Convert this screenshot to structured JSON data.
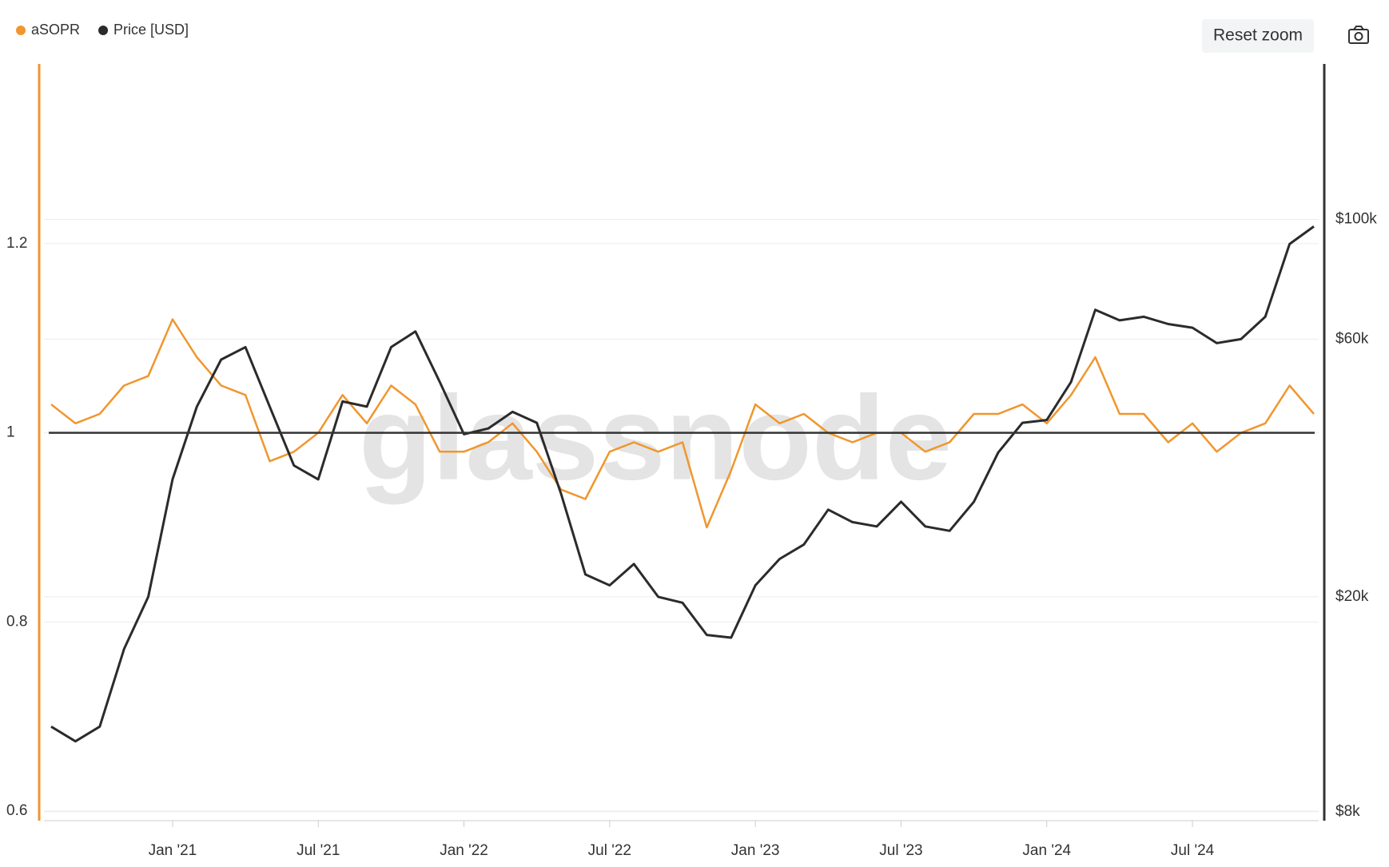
{
  "chart_data": {
    "type": "line",
    "legend": [
      "aSOPR",
      "Price [USD]"
    ],
    "reset_button": "Reset zoom",
    "watermark": "glassnode",
    "x": [
      "2020-08",
      "2020-09",
      "2020-10",
      "2020-11",
      "2020-12",
      "2021-01",
      "2021-02",
      "2021-03",
      "2021-04",
      "2021-05",
      "2021-06",
      "2021-07",
      "2021-08",
      "2021-09",
      "2021-10",
      "2021-11",
      "2021-12",
      "2022-01",
      "2022-02",
      "2022-03",
      "2022-04",
      "2022-05",
      "2022-06",
      "2022-07",
      "2022-08",
      "2022-09",
      "2022-10",
      "2022-11",
      "2022-12",
      "2023-01",
      "2023-02",
      "2023-03",
      "2023-04",
      "2023-05",
      "2023-06",
      "2023-07",
      "2023-08",
      "2023-09",
      "2023-10",
      "2023-11",
      "2023-12",
      "2024-01",
      "2024-02",
      "2024-03",
      "2024-04",
      "2024-05",
      "2024-06",
      "2024-07",
      "2024-08",
      "2024-09",
      "2024-10",
      "2024-11",
      "2024-12"
    ],
    "xticks": [
      {
        "value": "2021-01",
        "label": "Jan '21"
      },
      {
        "value": "2021-07",
        "label": "Jul '21"
      },
      {
        "value": "2022-01",
        "label": "Jan '22"
      },
      {
        "value": "2022-07",
        "label": "Jul '22"
      },
      {
        "value": "2023-01",
        "label": "Jan '23"
      },
      {
        "value": "2023-07",
        "label": "Jul '23"
      },
      {
        "value": "2024-01",
        "label": "Jan '24"
      },
      {
        "value": "2024-07",
        "label": "Jul '24"
      }
    ],
    "series": [
      {
        "name": "aSOPR",
        "color": "#f0962e",
        "axis": "y",
        "values": [
          1.03,
          1.01,
          1.02,
          1.05,
          1.06,
          1.12,
          1.08,
          1.05,
          1.04,
          0.97,
          0.98,
          1.0,
          1.04,
          1.01,
          1.05,
          1.03,
          0.98,
          0.98,
          0.99,
          1.01,
          0.98,
          0.94,
          0.93,
          0.98,
          0.99,
          0.98,
          0.99,
          0.9,
          0.96,
          1.03,
          1.01,
          1.02,
          1.0,
          0.99,
          1.0,
          1.0,
          0.98,
          0.99,
          1.02,
          1.02,
          1.03,
          1.01,
          1.04,
          1.08,
          1.02,
          1.02,
          0.99,
          1.01,
          0.98,
          1.0,
          1.01,
          1.05,
          1.02
        ]
      },
      {
        "name": "Price [USD]",
        "color": "#2b2b2b",
        "axis": "y2",
        "values": [
          11500,
          10800,
          11500,
          16000,
          20000,
          33000,
          45000,
          55000,
          58000,
          45000,
          35000,
          33000,
          46000,
          45000,
          58000,
          62000,
          50000,
          40000,
          41000,
          44000,
          42000,
          31000,
          22000,
          21000,
          23000,
          20000,
          19500,
          17000,
          16800,
          21000,
          23500,
          25000,
          29000,
          27500,
          27000,
          30000,
          27000,
          26500,
          30000,
          37000,
          42000,
          42500,
          50000,
          68000,
          65000,
          66000,
          64000,
          63000,
          59000,
          60000,
          66000,
          90000,
          97000
        ]
      }
    ],
    "reference_line": 1,
    "ylim": [
      0.59,
      1.39
    ],
    "yticks": [
      0.6,
      0.8,
      1,
      1.2
    ],
    "y2lim": [
      7700,
      194000
    ],
    "y2_log": true,
    "y2ticks": [
      {
        "value": 8000,
        "label": "$8k"
      },
      {
        "value": 20000,
        "label": "$20k"
      },
      {
        "value": 60000,
        "label": "$60k"
      },
      {
        "value": 100000,
        "label": "$100k"
      }
    ],
    "grid": true
  }
}
